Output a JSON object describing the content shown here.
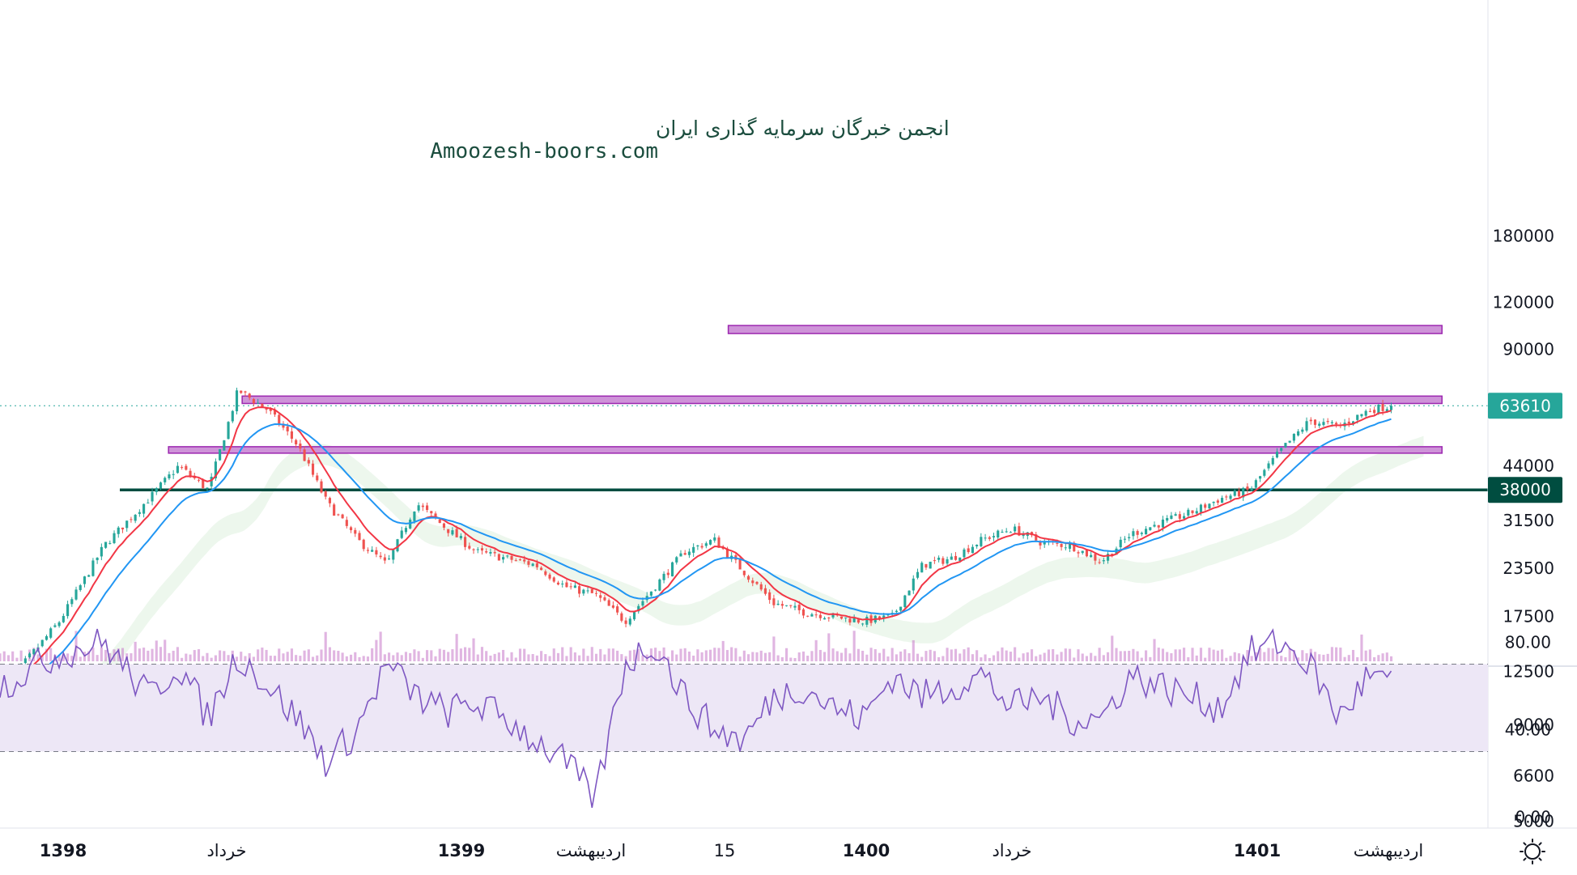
{
  "watermark": {
    "line1": "انجمن خبرگان سرمایه گذاری ایران",
    "line2": "Amoozesh-boors.com"
  },
  "price_axis": {
    "labels": [
      "180000",
      "120000",
      "90000",
      "63610",
      "44000",
      "38000",
      "31500",
      "23500",
      "17500",
      "12500",
      "9000",
      "6600",
      "5000"
    ]
  },
  "rsi_axis": {
    "labels": [
      "80.00",
      "40.00",
      "0.00"
    ]
  },
  "time_axis": {
    "labels": [
      {
        "text": "1398",
        "bold": true
      },
      {
        "text": "خرداد",
        "bold": false
      },
      {
        "text": "1399",
        "bold": true
      },
      {
        "text": "اردیبهشت",
        "bold": false
      },
      {
        "text": "15",
        "bold": false
      },
      {
        "text": "1400",
        "bold": true
      },
      {
        "text": "خرداد",
        "bold": false
      },
      {
        "text": "1401",
        "bold": true
      },
      {
        "text": "اردیبهشت",
        "bold": false
      }
    ]
  },
  "settings_icon": "gear-icon",
  "colors": {
    "up": "#26a69a",
    "down": "#ef5350",
    "ema_fast": "#f23645",
    "ema_slow": "#2196f3",
    "zone_fill": "#ce93d8",
    "zone_border": "#9c27b0",
    "support_line": "#004d40",
    "last_price_badge": "#26a69a",
    "rsi_line": "#7e57c2",
    "rsi_band": "#ede7f6",
    "volume": "#c678c9",
    "cloud_green": "#e8f5e9",
    "cloud_red": "#ffebee"
  },
  "chart_data": [
    {
      "type": "candlestick",
      "title": "",
      "scale": "log",
      "ylim": [
        5000,
        180000
      ],
      "last_price": 63610,
      "horizontal_levels": [
        {
          "type": "line",
          "value": 38000,
          "label": "38000"
        }
      ],
      "zones": [
        {
          "low": 99000,
          "high": 104000,
          "from_frac": 0.49,
          "to_frac": 0.98
        },
        {
          "low": 64500,
          "high": 67500,
          "from_frac": 0.16,
          "to_frac": 0.98
        },
        {
          "low": 48000,
          "high": 49500,
          "from_frac": 0.11,
          "to_frac": 0.98
        }
      ],
      "anchors": [
        [
          0,
          11000
        ],
        [
          0.04,
          17000
        ],
        [
          0.07,
          27000
        ],
        [
          0.1,
          36000
        ],
        [
          0.12,
          44000
        ],
        [
          0.14,
          38000
        ],
        [
          0.16,
          70000
        ],
        [
          0.18,
          62000
        ],
        [
          0.2,
          50000
        ],
        [
          0.22,
          35000
        ],
        [
          0.24,
          28000
        ],
        [
          0.26,
          24000
        ],
        [
          0.28,
          35000
        ],
        [
          0.3,
          30000
        ],
        [
          0.32,
          26000
        ],
        [
          0.34,
          25000
        ],
        [
          0.36,
          24000
        ],
        [
          0.38,
          21000
        ],
        [
          0.4,
          20000
        ],
        [
          0.42,
          17000
        ],
        [
          0.44,
          21000
        ],
        [
          0.46,
          26000
        ],
        [
          0.48,
          28000
        ],
        [
          0.5,
          23000
        ],
        [
          0.52,
          19000
        ],
        [
          0.54,
          18000
        ],
        [
          0.56,
          17500
        ],
        [
          0.58,
          17000
        ],
        [
          0.6,
          17500
        ],
        [
          0.62,
          24000
        ],
        [
          0.64,
          25000
        ],
        [
          0.66,
          28000
        ],
        [
          0.68,
          30000
        ],
        [
          0.7,
          27500
        ],
        [
          0.72,
          27000
        ],
        [
          0.74,
          24500
        ],
        [
          0.76,
          29000
        ],
        [
          0.78,
          31000
        ],
        [
          0.8,
          33000
        ],
        [
          0.82,
          36000
        ],
        [
          0.84,
          38000
        ],
        [
          0.86,
          48000
        ],
        [
          0.88,
          58000
        ],
        [
          0.9,
          56000
        ],
        [
          0.92,
          62000
        ],
        [
          0.935,
          63610
        ]
      ],
      "series": [
        {
          "name": "EMA fast",
          "color": "#f23645"
        },
        {
          "name": "EMA slow",
          "color": "#2196f3"
        }
      ]
    },
    {
      "type": "line",
      "title": "",
      "ylim": [
        0,
        100
      ],
      "bands": [
        30,
        70
      ],
      "anchors": [
        [
          0,
          60
        ],
        [
          0.04,
          75
        ],
        [
          0.07,
          80
        ],
        [
          0.1,
          55
        ],
        [
          0.12,
          70
        ],
        [
          0.14,
          45
        ],
        [
          0.16,
          75
        ],
        [
          0.18,
          60
        ],
        [
          0.2,
          45
        ],
        [
          0.22,
          25
        ],
        [
          0.24,
          40
        ],
        [
          0.26,
          70
        ],
        [
          0.28,
          55
        ],
        [
          0.3,
          48
        ],
        [
          0.32,
          52
        ],
        [
          0.34,
          45
        ],
        [
          0.36,
          35
        ],
        [
          0.38,
          25
        ],
        [
          0.4,
          8
        ],
        [
          0.42,
          70
        ],
        [
          0.44,
          80
        ],
        [
          0.46,
          55
        ],
        [
          0.48,
          40
        ],
        [
          0.5,
          35
        ],
        [
          0.52,
          55
        ],
        [
          0.54,
          60
        ],
        [
          0.56,
          50
        ],
        [
          0.58,
          45
        ],
        [
          0.6,
          65
        ],
        [
          0.62,
          55
        ],
        [
          0.64,
          60
        ],
        [
          0.66,
          65
        ],
        [
          0.68,
          50
        ],
        [
          0.7,
          55
        ],
        [
          0.72,
          45
        ],
        [
          0.74,
          45
        ],
        [
          0.76,
          65
        ],
        [
          0.78,
          60
        ],
        [
          0.8,
          55
        ],
        [
          0.82,
          50
        ],
        [
          0.84,
          75
        ],
        [
          0.86,
          80
        ],
        [
          0.88,
          70
        ],
        [
          0.9,
          45
        ],
        [
          0.92,
          65
        ],
        [
          0.935,
          60
        ]
      ]
    }
  ]
}
